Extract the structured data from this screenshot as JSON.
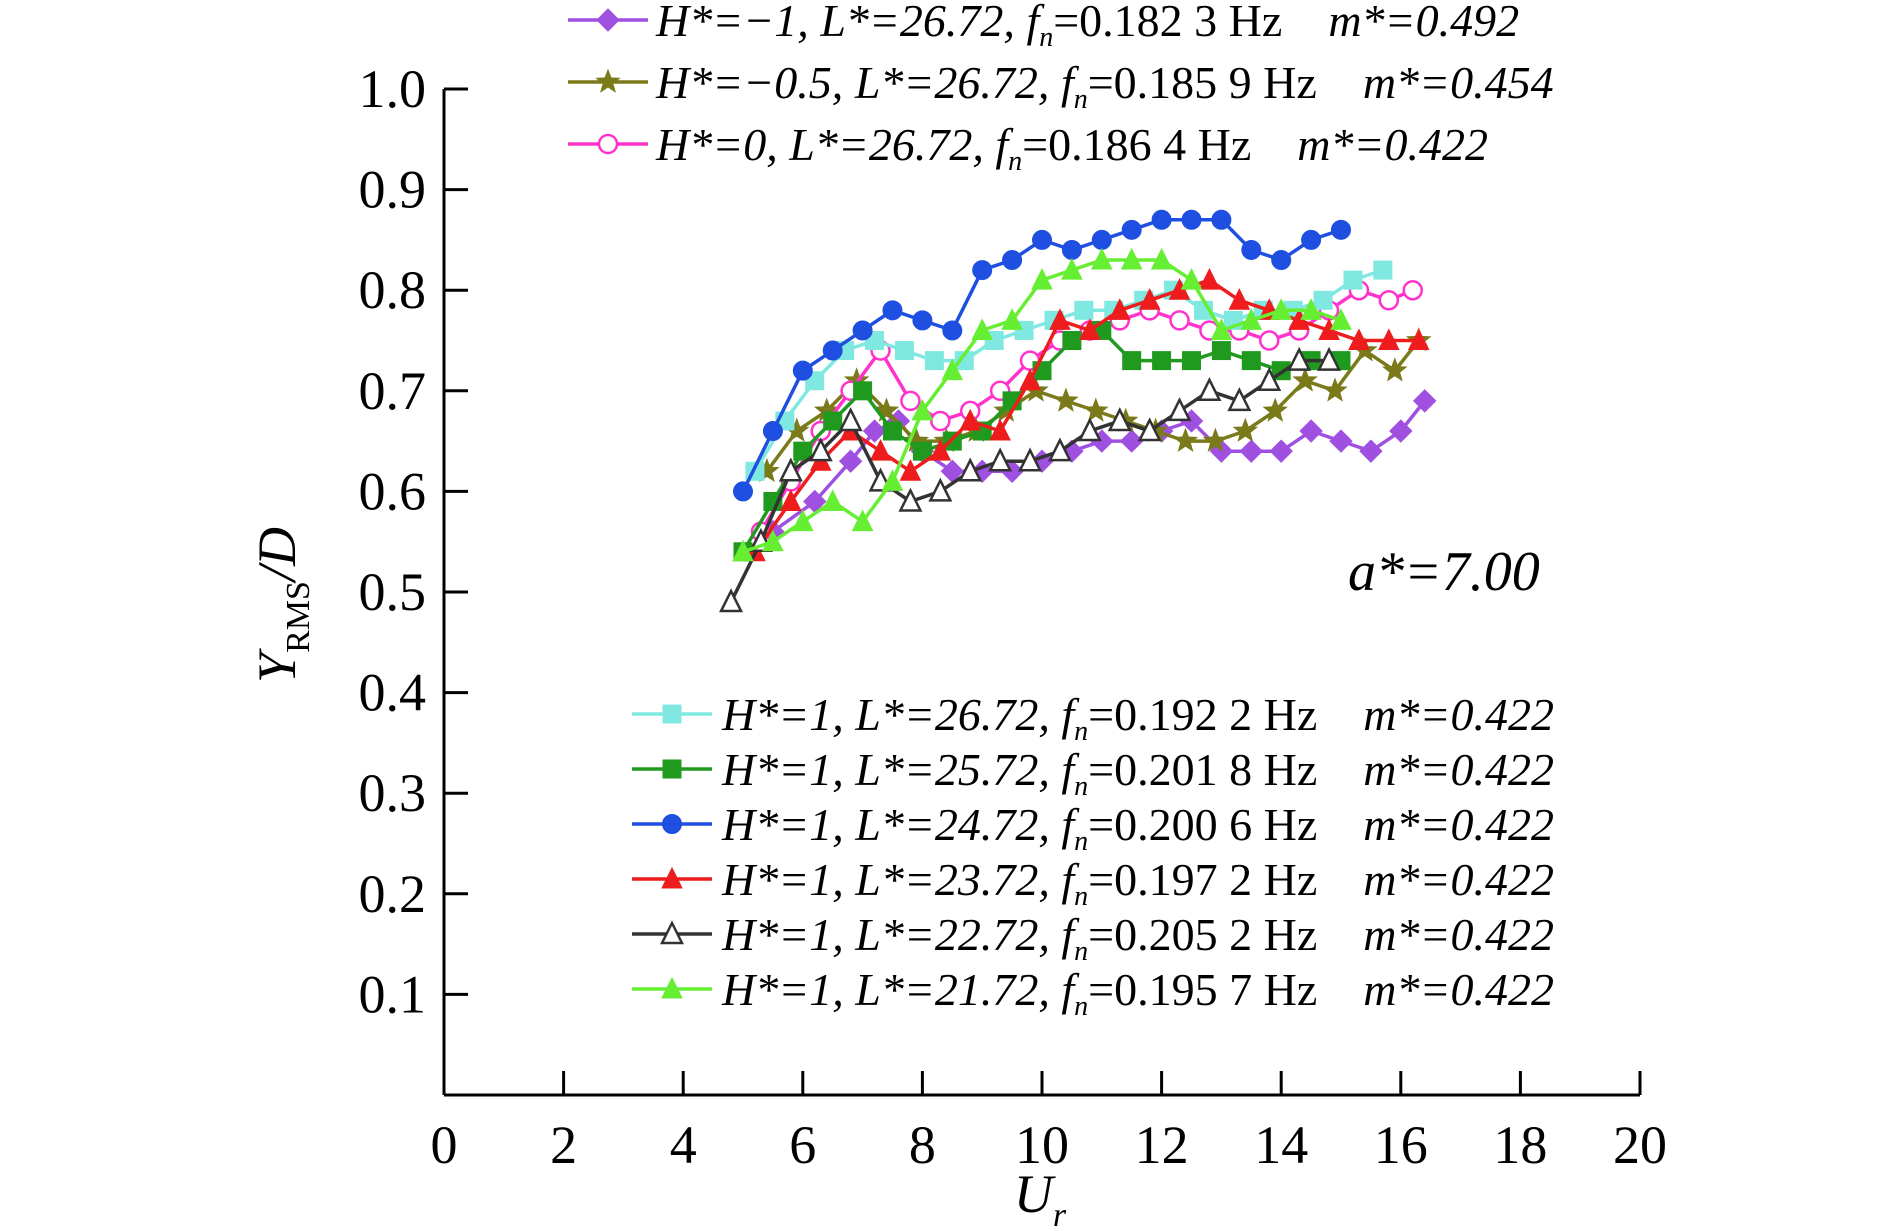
{
  "chart_data": {
    "type": "line",
    "xlabel": "U",
    "xlabel_sub": "r",
    "ylabel": "Y",
    "ylabel_sub": "RMS",
    "ylabel_suffix": "/D",
    "xlim": [
      0,
      20
    ],
    "ylim": [
      0,
      1.0
    ],
    "x_ticks": [
      "0",
      "2",
      "4",
      "6",
      "8",
      "10",
      "12",
      "14",
      "16",
      "18",
      "20"
    ],
    "y_ticks": [
      "0.1",
      "0.2",
      "0.3",
      "0.4",
      "0.5",
      "0.6",
      "0.7",
      "0.8",
      "0.9",
      "1.0"
    ],
    "annotation": "a*=7.00",
    "grid": false,
    "series": [
      {
        "legend": {
          "h": "H*=−1, ",
          "l": "L*=26.72, ",
          "f": "f",
          "fsub": "n",
          "fval": "=0.182 3 Hz",
          "m": "m*=0.492"
        },
        "color": "#a050e0",
        "marker": "diamond",
        "x": [
          5.5,
          6.2,
          6.8,
          7.2,
          7.6,
          8.0,
          8.5,
          9.0,
          9.5,
          10.0,
          10.5,
          11.0,
          11.5,
          12.0,
          12.5,
          13.0,
          13.5,
          14.0,
          14.5,
          15.0,
          15.5,
          16.0,
          16.4
        ],
        "y": [
          0.56,
          0.59,
          0.63,
          0.66,
          0.67,
          0.64,
          0.62,
          0.62,
          0.62,
          0.63,
          0.64,
          0.65,
          0.65,
          0.66,
          0.67,
          0.64,
          0.64,
          0.64,
          0.66,
          0.65,
          0.64,
          0.66,
          0.69
        ]
      },
      {
        "legend": {
          "h": "H*=−0.5, ",
          "l": "L*=26.72, ",
          "f": "f",
          "fsub": "n",
          "fval": "=0.185 9 Hz",
          "m": "m*=0.454"
        },
        "color": "#7a7a1a",
        "marker": "star",
        "x": [
          5.4,
          5.9,
          6.4,
          6.9,
          7.4,
          7.9,
          8.4,
          8.9,
          9.4,
          9.9,
          10.4,
          10.9,
          11.4,
          11.9,
          12.4,
          12.9,
          13.4,
          13.9,
          14.4,
          14.9,
          15.4,
          15.9,
          16.3
        ],
        "y": [
          0.62,
          0.66,
          0.68,
          0.71,
          0.68,
          0.65,
          0.65,
          0.66,
          0.68,
          0.7,
          0.69,
          0.68,
          0.67,
          0.66,
          0.65,
          0.65,
          0.66,
          0.68,
          0.71,
          0.7,
          0.74,
          0.72,
          0.75
        ]
      },
      {
        "legend": {
          "h": "H*=0, ",
          "l": "L*=26.72, ",
          "f": "f",
          "fsub": "n",
          "fval": "=0.186 4 Hz",
          "m": "m*=0.422"
        },
        "color": "#ff33cc",
        "marker": "circle-open",
        "x": [
          5.3,
          5.8,
          6.3,
          6.8,
          7.3,
          7.8,
          8.3,
          8.8,
          9.3,
          9.8,
          10.3,
          10.8,
          11.3,
          11.8,
          12.3,
          12.8,
          13.3,
          13.8,
          14.3,
          14.8,
          15.3,
          15.8,
          16.2
        ],
        "y": [
          0.56,
          0.61,
          0.66,
          0.7,
          0.74,
          0.69,
          0.67,
          0.68,
          0.7,
          0.73,
          0.75,
          0.76,
          0.77,
          0.78,
          0.77,
          0.76,
          0.76,
          0.75,
          0.76,
          0.78,
          0.8,
          0.79,
          0.8
        ]
      },
      {
        "legend": {
          "h": "H*=1, ",
          "l": "L*=26.72, ",
          "f": "f",
          "fsub": "n",
          "fval": "=0.192 2 Hz",
          "m": "m*=0.422"
        },
        "color": "#7fe8e0",
        "marker": "square",
        "x": [
          5.2,
          5.7,
          6.2,
          6.7,
          7.2,
          7.7,
          8.2,
          8.7,
          9.2,
          9.7,
          10.2,
          10.7,
          11.2,
          11.7,
          12.2,
          12.7,
          13.2,
          13.7,
          14.2,
          14.7,
          15.2,
          15.7
        ],
        "y": [
          0.62,
          0.67,
          0.71,
          0.74,
          0.75,
          0.74,
          0.73,
          0.73,
          0.75,
          0.76,
          0.77,
          0.78,
          0.78,
          0.79,
          0.8,
          0.78,
          0.77,
          0.78,
          0.78,
          0.79,
          0.81,
          0.82
        ]
      },
      {
        "legend": {
          "h": "H*=1, ",
          "l": "L*=25.72, ",
          "f": "f",
          "fsub": "n",
          "fval": "=0.201 8 Hz",
          "m": "m*=0.422"
        },
        "color": "#1f9a1f",
        "marker": "square",
        "x": [
          5.0,
          5.5,
          6.0,
          6.5,
          7.0,
          7.5,
          8.0,
          8.5,
          9.0,
          9.5,
          10.0,
          10.5,
          11.0,
          11.5,
          12.0,
          12.5,
          13.0,
          13.5,
          14.0,
          14.5,
          15.0
        ],
        "y": [
          0.54,
          0.59,
          0.64,
          0.67,
          0.7,
          0.66,
          0.64,
          0.65,
          0.66,
          0.69,
          0.72,
          0.75,
          0.76,
          0.73,
          0.73,
          0.73,
          0.74,
          0.73,
          0.72,
          0.73,
          0.73
        ]
      },
      {
        "legend": {
          "h": "H*=1, ",
          "l": "L*=24.72, ",
          "f": "f",
          "fsub": "n",
          "fval": "=0.200 6 Hz",
          "m": "m*=0.422"
        },
        "color": "#1f4fe0",
        "marker": "circle",
        "x": [
          5.0,
          5.5,
          6.0,
          6.5,
          7.0,
          7.5,
          8.0,
          8.5,
          9.0,
          9.5,
          10.0,
          10.5,
          11.0,
          11.5,
          12.0,
          12.5,
          13.0,
          13.5,
          14.0,
          14.5,
          15.0
        ],
        "y": [
          0.6,
          0.66,
          0.72,
          0.74,
          0.76,
          0.78,
          0.77,
          0.76,
          0.82,
          0.83,
          0.85,
          0.84,
          0.85,
          0.86,
          0.87,
          0.87,
          0.87,
          0.84,
          0.83,
          0.85,
          0.86
        ]
      },
      {
        "legend": {
          "h": "H*=1, ",
          "l": "L*=23.72, ",
          "f": "f",
          "fsub": "n",
          "fval": "=0.197 2 Hz",
          "m": "m*=0.422"
        },
        "color": "#ee1c1c",
        "marker": "triangle",
        "x": [
          5.2,
          5.8,
          6.3,
          6.8,
          7.3,
          7.8,
          8.3,
          8.8,
          9.3,
          9.8,
          10.3,
          10.8,
          11.3,
          11.8,
          12.3,
          12.8,
          13.3,
          13.8,
          14.3,
          14.8,
          15.3,
          15.8,
          16.3
        ],
        "y": [
          0.54,
          0.59,
          0.63,
          0.66,
          0.64,
          0.62,
          0.64,
          0.67,
          0.66,
          0.71,
          0.77,
          0.76,
          0.78,
          0.79,
          0.8,
          0.81,
          0.79,
          0.78,
          0.77,
          0.76,
          0.75,
          0.75,
          0.75
        ]
      },
      {
        "legend": {
          "h": "H*=1, ",
          "l": "L*=22.72, ",
          "f": "f",
          "fsub": "n",
          "fval": "=0.205 2 Hz",
          "m": "m*=0.422"
        },
        "color": "#333333",
        "marker": "triangle-open",
        "x": [
          4.8,
          5.3,
          5.8,
          6.3,
          6.8,
          7.3,
          7.8,
          8.3,
          8.8,
          9.3,
          9.8,
          10.3,
          10.8,
          11.3,
          11.8,
          12.3,
          12.8,
          13.3,
          13.8,
          14.3,
          14.8
        ],
        "y": [
          0.49,
          0.55,
          0.62,
          0.64,
          0.67,
          0.61,
          0.59,
          0.6,
          0.62,
          0.63,
          0.63,
          0.64,
          0.66,
          0.67,
          0.66,
          0.68,
          0.7,
          0.69,
          0.71,
          0.73,
          0.73
        ]
      },
      {
        "legend": {
          "h": "H*=1, ",
          "l": "L*=21.72, ",
          "f": "f",
          "fsub": "n",
          "fval": "=0.195 7 Hz",
          "m": "m*=0.422"
        },
        "color": "#66ee33",
        "marker": "triangle",
        "x": [
          5.0,
          5.5,
          6.0,
          6.5,
          7.0,
          7.5,
          8.0,
          8.5,
          9.0,
          9.5,
          10.0,
          10.5,
          11.0,
          11.5,
          12.0,
          12.5,
          13.0,
          13.5,
          14.0,
          14.5,
          15.0
        ],
        "y": [
          0.54,
          0.55,
          0.57,
          0.59,
          0.57,
          0.61,
          0.68,
          0.72,
          0.76,
          0.77,
          0.81,
          0.82,
          0.83,
          0.83,
          0.83,
          0.81,
          0.76,
          0.77,
          0.78,
          0.78,
          0.77
        ]
      }
    ]
  }
}
